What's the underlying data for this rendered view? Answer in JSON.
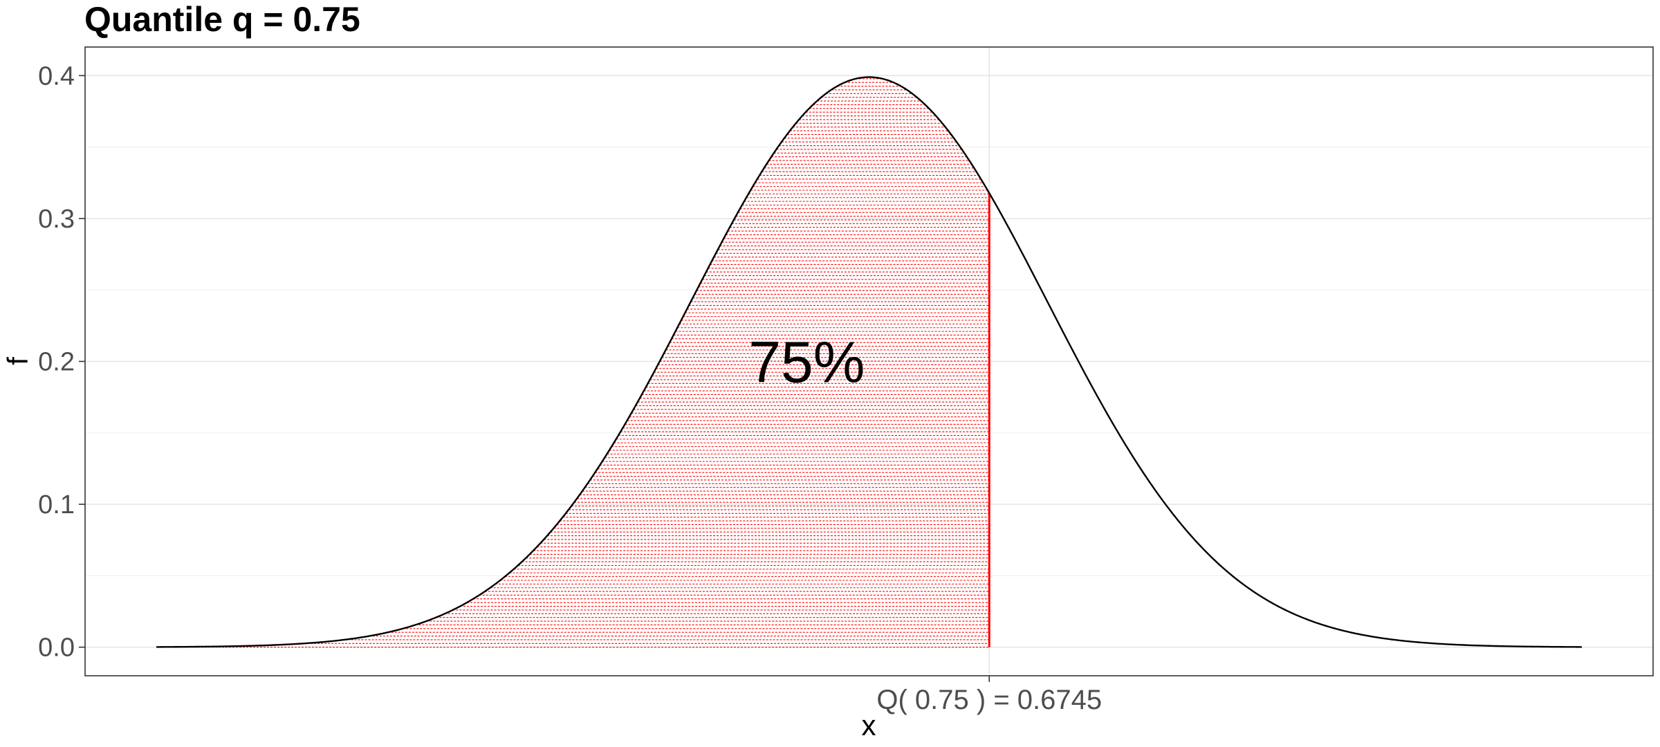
{
  "chart_data": {
    "type": "area",
    "title": "Quantile q = 0.75",
    "xlabel": "x",
    "ylabel": "f",
    "distribution": "standard normal",
    "x_range": [
      -4,
      4
    ],
    "xlim": [
      -4.4,
      4.4
    ],
    "ylim": [
      -0.02,
      0.42
    ],
    "y_ticks": [
      0.0,
      0.1,
      0.2,
      0.3,
      0.4
    ],
    "y_tick_labels": [
      "0.0",
      "0.1",
      "0.2",
      "0.3",
      "0.4"
    ],
    "quantile": 0.75,
    "quantile_value": 0.6745,
    "quantile_tick_label": "Q( 0.75 ) =  0.6745",
    "shaded_label": "75%",
    "shaded_label_position": {
      "x": -0.35,
      "y": 0.2
    },
    "shade_color": "#ff0000",
    "curve_color": "#000000",
    "grid": true,
    "legend": "none"
  }
}
